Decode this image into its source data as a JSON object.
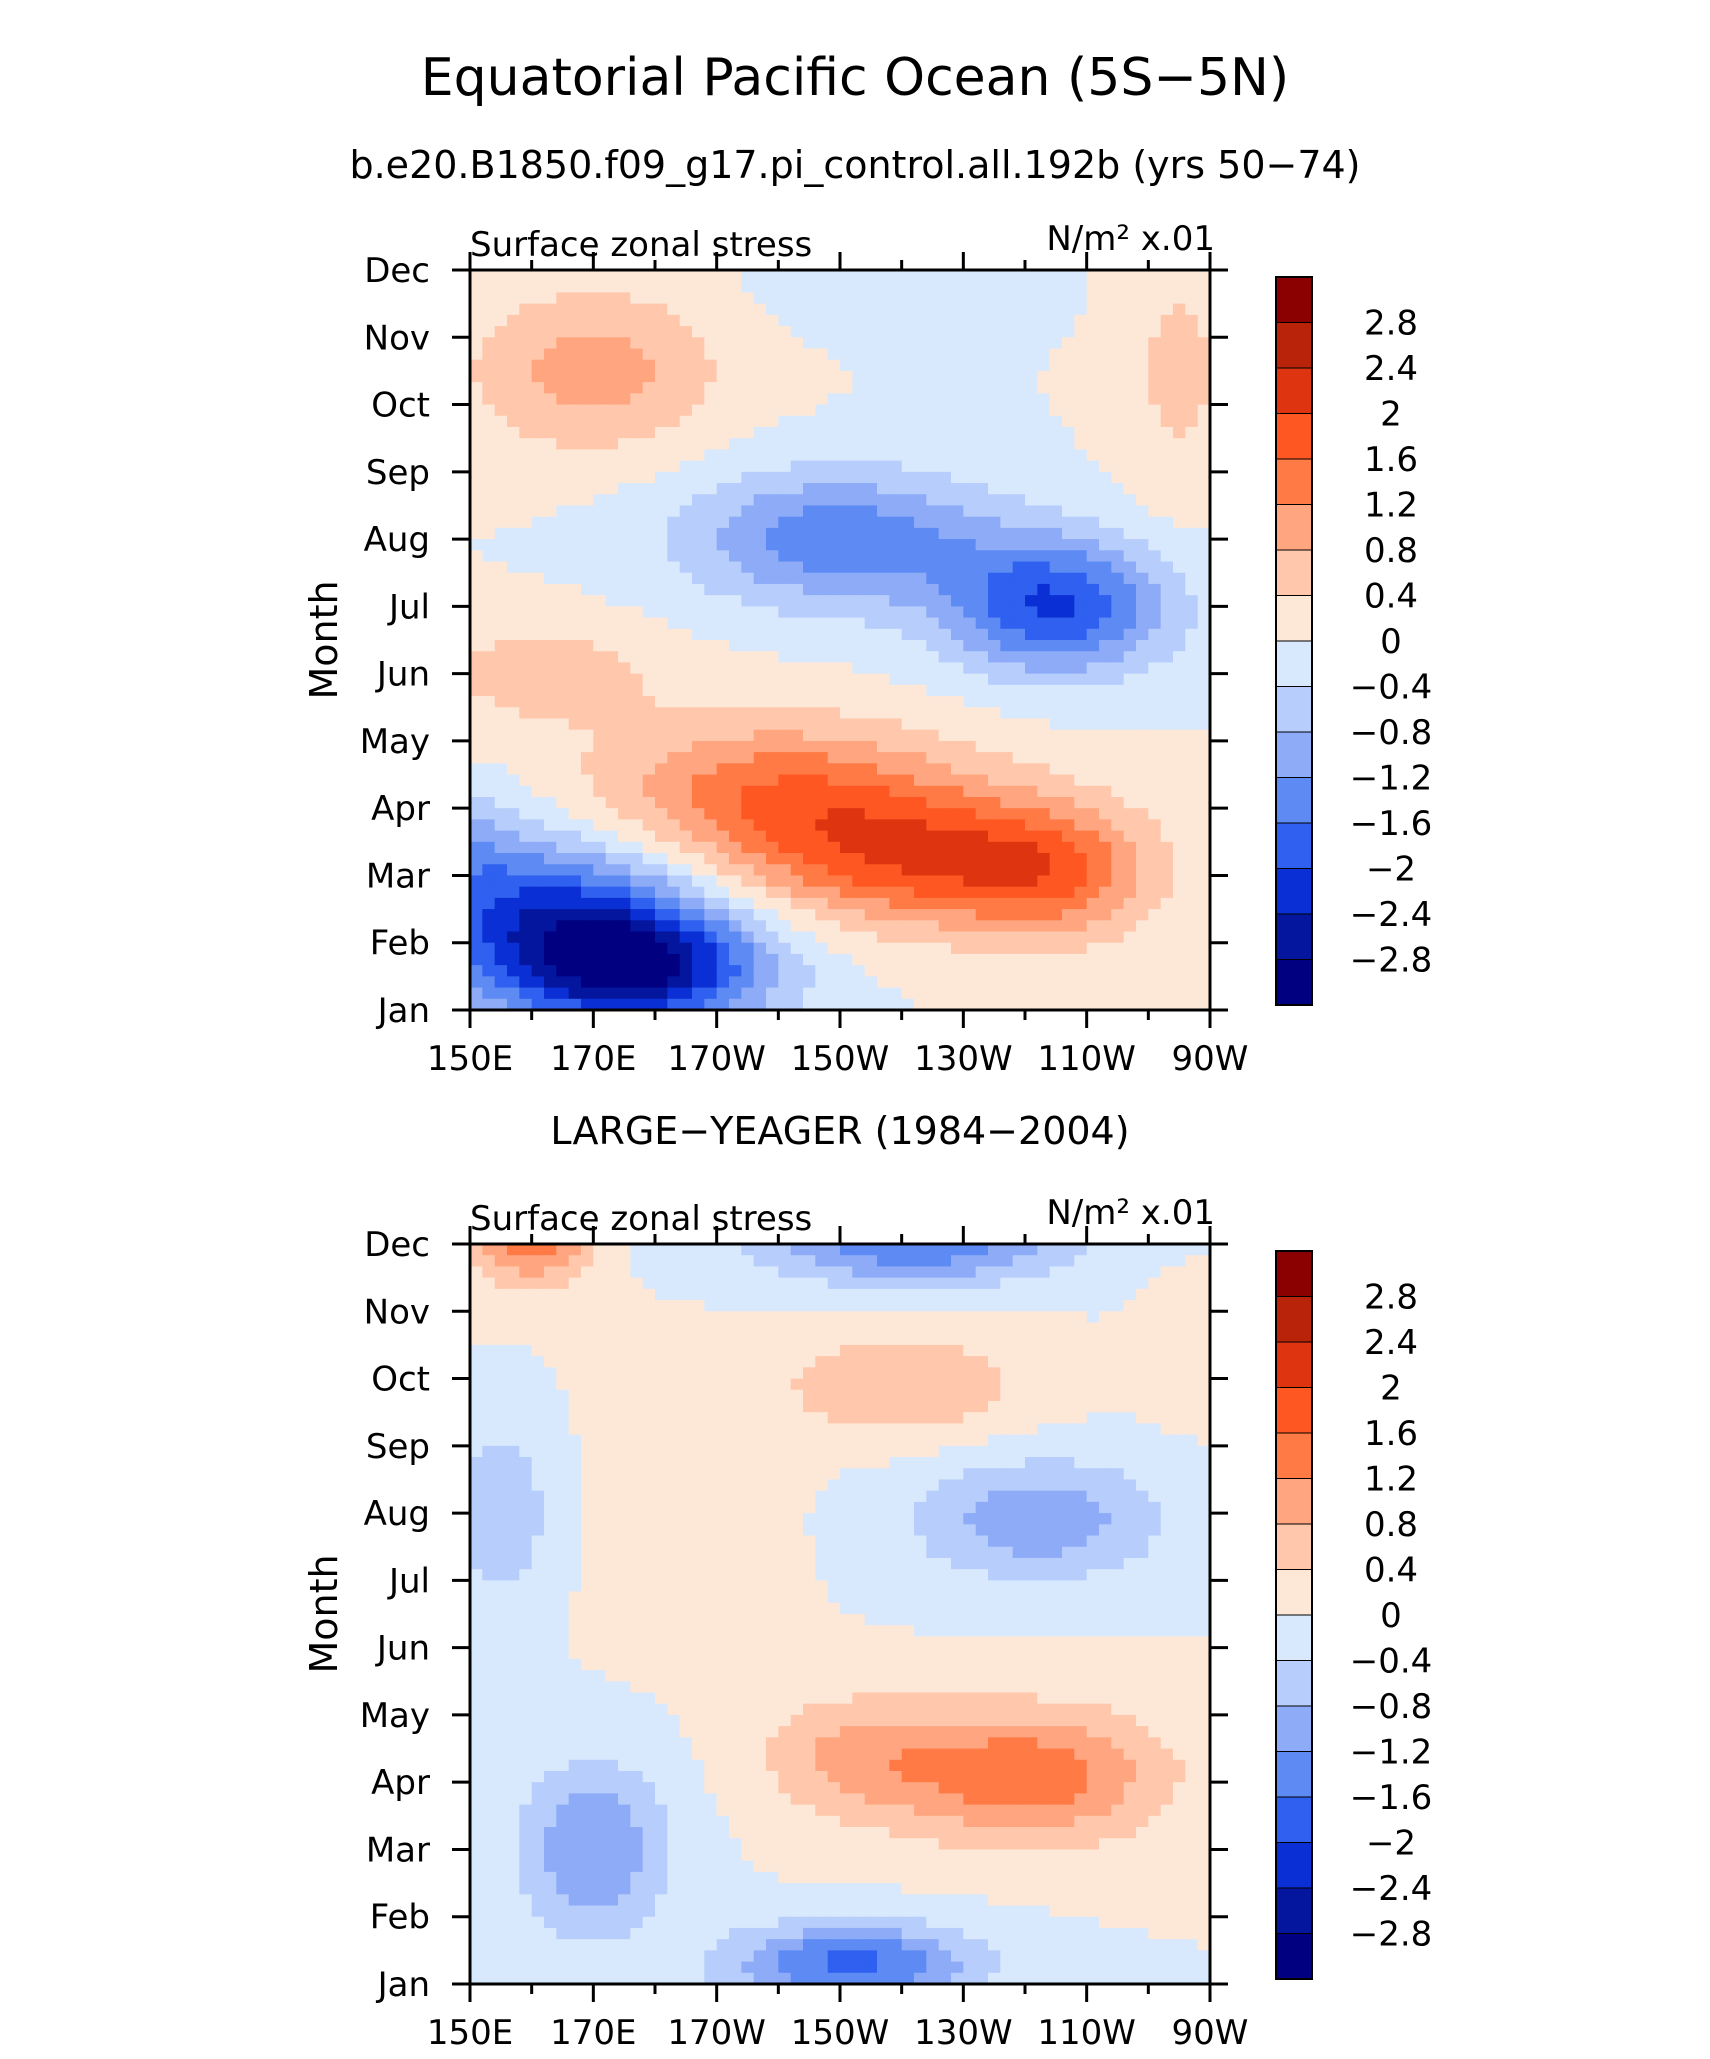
{
  "figure": {
    "title": "Equatorial Pacific Ocean (5S−5N)",
    "subtitle": "b.e20.B1850.f09_g17.pi_control.all.192b (yrs 50−74)"
  },
  "colorbar": {
    "levels": [
      "2.8",
      "2.4",
      "2",
      "1.6",
      "1.2",
      "0.8",
      "0.4",
      "0",
      "−0.4",
      "−0.8",
      "−1.2",
      "−1.6",
      "−2",
      "−2.4",
      "−2.8"
    ],
    "colors": [
      "#8b0000",
      "#b8230a",
      "#de3410",
      "#ff5722",
      "#ff7a45",
      "#ffa680",
      "#ffc8ac",
      "#fde8d8",
      "#d9e9fd",
      "#b7cdfb",
      "#8eabf7",
      "#5e8bf3",
      "#2f60f0",
      "#0a2fd5",
      "#04169e",
      "#000080"
    ]
  },
  "chart_data": [
    {
      "type": "heatmap",
      "name": "model",
      "panel_title": "",
      "left_label": "Surface zonal stress",
      "right_label": "N/m² x.01",
      "ylabel": "Month",
      "xlabel": "",
      "x_ticks": [
        "150E",
        "170E",
        "170W",
        "150W",
        "130W",
        "110W",
        "90W"
      ],
      "x_range_deg_east": [
        150,
        270
      ],
      "y_ticks": [
        "Jan",
        "Feb",
        "Mar",
        "Apr",
        "May",
        "Jun",
        "Jul",
        "Aug",
        "Sep",
        "Oct",
        "Nov",
        "Dec"
      ],
      "contour_levels": [
        -2.8,
        -2.4,
        -2,
        -1.6,
        -1.2,
        -0.8,
        -0.4,
        0,
        0.4,
        0.8,
        1.2,
        1.6,
        2,
        2.4,
        2.8
      ],
      "features": [
        {
          "x": 165,
          "y": 1.2,
          "value": -2.2,
          "wx": 22,
          "wy": 1.3
        },
        {
          "x": 180,
          "y": 0.6,
          "value": -2.0,
          "wx": 20,
          "wy": 0.9
        },
        {
          "x": 150,
          "y": 2.3,
          "value": -0.7,
          "wx": 10,
          "wy": 1.0
        },
        {
          "x": 200,
          "y": 3.2,
          "value": 1.5,
          "wx": 30,
          "wy": 1.1
        },
        {
          "x": 225,
          "y": 2.2,
          "value": 1.7,
          "wx": 28,
          "wy": 1.0
        },
        {
          "x": 245,
          "y": 2.0,
          "value": 0.9,
          "wx": 15,
          "wy": 1.0
        },
        {
          "x": 162,
          "y": 5.0,
          "value": 0.6,
          "wx": 20,
          "wy": 0.8
        },
        {
          "x": 210,
          "y": 7.0,
          "value": -1.5,
          "wx": 25,
          "wy": 1.0
        },
        {
          "x": 245,
          "y": 6.0,
          "value": -2.0,
          "wx": 18,
          "wy": 1.0
        },
        {
          "x": 170,
          "y": 9.5,
          "value": 1.0,
          "wx": 20,
          "wy": 1.2
        },
        {
          "x": 265,
          "y": 9.5,
          "value": 0.5,
          "wx": 10,
          "wy": 2.0
        },
        {
          "x": 220,
          "y": 10.8,
          "value": -0.4,
          "wx": 20,
          "wy": 0.7
        }
      ]
    },
    {
      "type": "heatmap",
      "name": "obs",
      "panel_title": "LARGE−YEAGER (1984−2004)",
      "left_label": "Surface zonal stress",
      "right_label": "N/m² x.01",
      "ylabel": "Month",
      "xlabel": "",
      "x_ticks": [
        "150E",
        "170E",
        "170W",
        "150W",
        "130W",
        "110W",
        "90W"
      ],
      "x_range_deg_east": [
        150,
        270
      ],
      "y_ticks": [
        "Jan",
        "Feb",
        "Mar",
        "Apr",
        "May",
        "Jun",
        "Jul",
        "Aug",
        "Sep",
        "Oct",
        "Nov",
        "Dec"
      ],
      "contour_levels": [
        -2.8,
        -2.4,
        -2,
        -1.6,
        -1.2,
        -0.8,
        -0.4,
        0,
        0.4,
        0.8,
        1.2,
        1.6,
        2,
        2.4,
        2.8
      ],
      "features": [
        {
          "x": 160,
          "y": 11.3,
          "value": 1.9,
          "wx": 9,
          "wy": 0.8
        },
        {
          "x": 222,
          "y": 11.0,
          "value": -1.5,
          "wx": 25,
          "wy": 0.6
        },
        {
          "x": 220,
          "y": 8.9,
          "value": 0.8,
          "wx": 20,
          "wy": 0.8
        },
        {
          "x": 242,
          "y": 6.9,
          "value": -1.1,
          "wx": 20,
          "wy": 0.9
        },
        {
          "x": 240,
          "y": 3.1,
          "value": 1.5,
          "wx": 22,
          "wy": 1.0
        },
        {
          "x": 212,
          "y": 3.4,
          "value": 0.8,
          "wx": 15,
          "wy": 0.9
        },
        {
          "x": 170,
          "y": 2.0,
          "value": -1.2,
          "wx": 12,
          "wy": 1.3
        },
        {
          "x": 212,
          "y": 0.3,
          "value": -1.7,
          "wx": 20,
          "wy": 0.6
        },
        {
          "x": 155,
          "y": 7.0,
          "value": -0.8,
          "wx": 8,
          "wy": 1.2
        },
        {
          "x": 185,
          "y": 7.0,
          "value": 0.2,
          "wx": 15,
          "wy": 2.0
        },
        {
          "x": 266,
          "y": 9.5,
          "value": 0.3,
          "wx": 6,
          "wy": 1.0
        }
      ]
    }
  ]
}
